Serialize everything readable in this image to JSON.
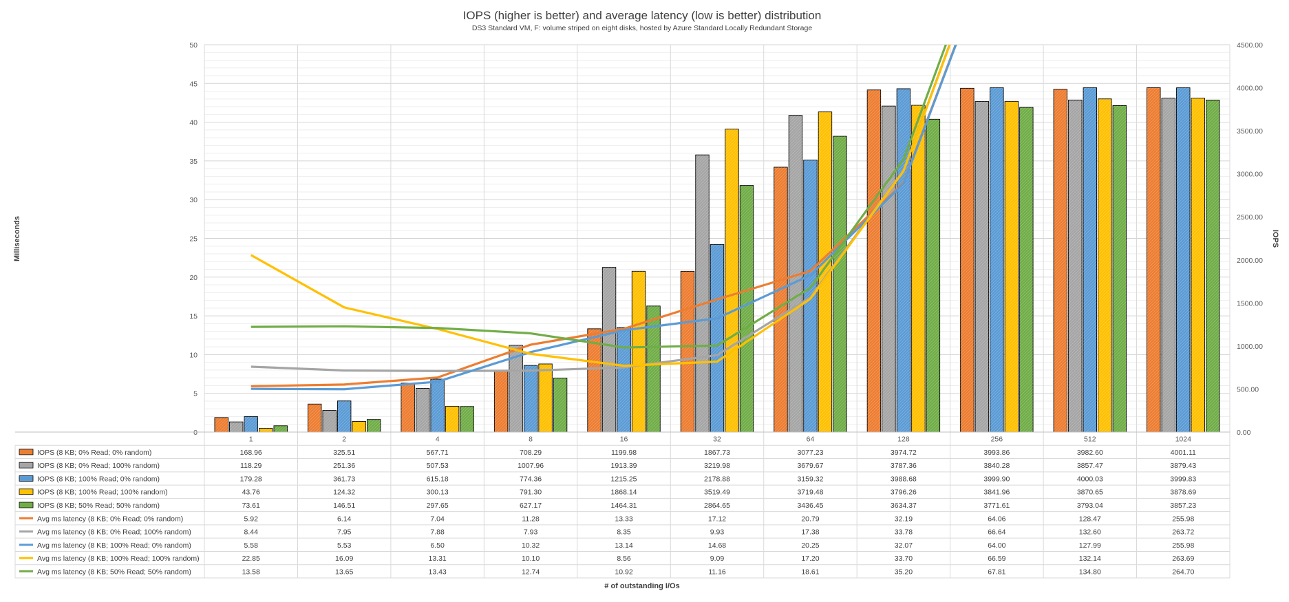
{
  "chart_data": {
    "type": "bar",
    "title": "IOPS (higher is better) and average latency (low is better) distribution",
    "subtitle": "DS3 Standard VM, F: volume striped on eight disks, hosted by Azure Standard Locally Redundant Storage",
    "xlabel": "# of outstanding I/Os",
    "ylabel_left": "Milliseconds",
    "ylabel_right": "IOPS",
    "ylim_left": [
      0,
      50
    ],
    "ylim_right": [
      0,
      4500
    ],
    "yticks_left": [
      "0",
      "5",
      "10",
      "15",
      "20",
      "25",
      "30",
      "35",
      "40",
      "45",
      "50"
    ],
    "yticks_right": [
      "0.00",
      "500.00",
      "1000.00",
      "1500.00",
      "2000.00",
      "2500.00",
      "3000.00",
      "3500.00",
      "4000.00",
      "4500.00"
    ],
    "categories": [
      "1",
      "2",
      "4",
      "8",
      "16",
      "32",
      "64",
      "128",
      "256",
      "512",
      "1024"
    ],
    "grid": true,
    "legend_placement": "data-table",
    "bar_series": [
      {
        "name": "IOPS (8 KB; 0% Read; 0% random)",
        "color": "#ED7D31",
        "labels": [
          "168.96",
          "325.51",
          "567.71",
          "708.29",
          "1199.98",
          "1867.73",
          "3077.23",
          "3974.72",
          "3993.86",
          "3982.60",
          "4001.11"
        ],
        "values": [
          168.96,
          325.51,
          567.71,
          708.29,
          1199.98,
          1867.73,
          3077.23,
          3974.72,
          3993.86,
          3982.6,
          4001.11
        ]
      },
      {
        "name": "IOPS (8 KB; 0% Read; 100% random)",
        "color": "#A5A5A5",
        "labels": [
          "118.29",
          "251.36",
          "507.53",
          "1007.96",
          "1913.39",
          "3219.98",
          "3679.67",
          "3787.36",
          "3840.28",
          "3857.47",
          "3879.43"
        ],
        "values": [
          118.29,
          251.36,
          507.53,
          1007.96,
          1913.39,
          3219.98,
          3679.67,
          3787.36,
          3840.28,
          3857.47,
          3879.43
        ]
      },
      {
        "name": "IOPS (8 KB; 100% Read; 0% random)",
        "color": "#5B9BD5",
        "labels": [
          "179.28",
          "361.73",
          "615.18",
          "774.36",
          "1215.25",
          "2178.88",
          "3159.32",
          "3988.68",
          "3999.90",
          "4000.03",
          "3999.83"
        ],
        "values": [
          179.28,
          361.73,
          615.18,
          774.36,
          1215.25,
          2178.88,
          3159.32,
          3988.68,
          3999.9,
          4000.03,
          3999.83
        ]
      },
      {
        "name": "IOPS (8 KB; 100% Read; 100% random)",
        "color": "#FFC000",
        "labels": [
          "43.76",
          "124.32",
          "300.13",
          "791.30",
          "1868.14",
          "3519.49",
          "3719.48",
          "3796.26",
          "3841.96",
          "3870.65",
          "3878.69"
        ],
        "values": [
          43.76,
          124.32,
          300.13,
          791.3,
          1868.14,
          3519.49,
          3719.48,
          3796.26,
          3841.96,
          3870.65,
          3878.69
        ]
      },
      {
        "name": "IOPS (8 KB; 50% Read; 50% random)",
        "color": "#70AD47",
        "labels": [
          "73.61",
          "146.51",
          "297.65",
          "627.17",
          "1464.31",
          "2864.65",
          "3436.45",
          "3634.37",
          "3771.61",
          "3793.04",
          "3857.23"
        ],
        "values": [
          73.61,
          146.51,
          297.65,
          627.17,
          1464.31,
          2864.65,
          3436.45,
          3634.37,
          3771.61,
          3793.04,
          3857.23
        ]
      }
    ],
    "line_series": [
      {
        "name": "Avg ms latency (8 KB; 0% Read; 0% random)",
        "color": "#ED7D31",
        "labels": [
          "5.92",
          "6.14",
          "7.04",
          "11.28",
          "13.33",
          "17.12",
          "20.79",
          "32.19",
          "64.06",
          "128.47",
          "255.98"
        ],
        "values": [
          5.92,
          6.14,
          7.04,
          11.28,
          13.33,
          17.12,
          20.79,
          32.19,
          64.06,
          128.47,
          255.98
        ]
      },
      {
        "name": "Avg ms latency (8 KB; 0% Read; 100% random)",
        "color": "#A5A5A5",
        "labels": [
          "8.44",
          "7.95",
          "7.88",
          "7.93",
          "8.35",
          "9.93",
          "17.38",
          "33.78",
          "66.64",
          "132.60",
          "263.72"
        ],
        "values": [
          8.44,
          7.95,
          7.88,
          7.93,
          8.35,
          9.93,
          17.38,
          33.78,
          66.64,
          132.6,
          263.72
        ]
      },
      {
        "name": "Avg ms latency (8 KB; 100% Read; 0% random)",
        "color": "#5B9BD5",
        "labels": [
          "5.58",
          "5.53",
          "6.50",
          "10.32",
          "13.14",
          "14.68",
          "20.25",
          "32.07",
          "64.00",
          "127.99",
          "255.98"
        ],
        "values": [
          5.58,
          5.53,
          6.5,
          10.32,
          13.14,
          14.68,
          20.25,
          32.07,
          64.0,
          127.99,
          255.98
        ]
      },
      {
        "name": "Avg ms latency (8 KB; 100% Read; 100% random)",
        "color": "#FFC000",
        "labels": [
          "22.85",
          "16.09",
          "13.31",
          "10.10",
          "8.56",
          "9.09",
          "17.20",
          "33.70",
          "66.59",
          "132.14",
          "263.69"
        ],
        "values": [
          22.85,
          16.09,
          13.31,
          10.1,
          8.56,
          9.09,
          17.2,
          33.7,
          66.59,
          132.14,
          263.69
        ]
      },
      {
        "name": "Avg ms latency (8 KB; 50% Read; 50% random)",
        "color": "#70AD47",
        "labels": [
          "13.58",
          "13.65",
          "13.43",
          "12.74",
          "10.92",
          "11.16",
          "18.61",
          "35.20",
          "67.81",
          "134.80",
          "264.70"
        ],
        "values": [
          13.58,
          13.65,
          13.43,
          12.74,
          10.92,
          11.16,
          18.61,
          35.2,
          67.81,
          134.8,
          264.7
        ]
      }
    ]
  }
}
